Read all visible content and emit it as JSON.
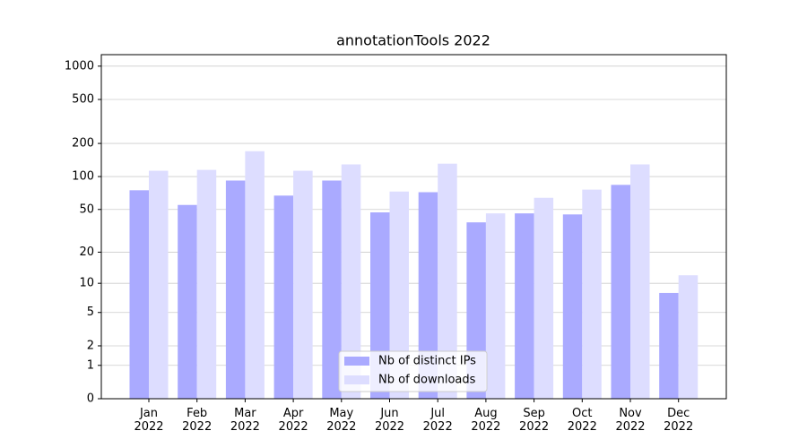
{
  "chart_data": {
    "type": "bar",
    "title": "annotationTools 2022",
    "categories": [
      "Jan\n2022",
      "Feb\n2022",
      "Mar\n2022",
      "Apr\n2022",
      "May\n2022",
      "Jun\n2022",
      "Jul\n2022",
      "Aug\n2022",
      "Sep\n2022",
      "Oct\n2022",
      "Nov\n2022",
      "Dec\n2022"
    ],
    "series": [
      {
        "name": "Nb of distinct IPs",
        "color": "#aaaaff",
        "values": [
          75,
          55,
          92,
          67,
          92,
          47,
          72,
          38,
          46,
          45,
          84,
          8
        ]
      },
      {
        "name": "Nb of downloads",
        "color": "#ddddff",
        "values": [
          113,
          115,
          170,
          113,
          129,
          73,
          131,
          46,
          64,
          76,
          129,
          12
        ]
      }
    ],
    "yscale": "log1p",
    "ylim": [
      0,
      1270
    ],
    "yticks": [
      0,
      1,
      2,
      5,
      10,
      20,
      50,
      100,
      200,
      500,
      1000
    ],
    "grid": true,
    "legend": "lower center"
  }
}
